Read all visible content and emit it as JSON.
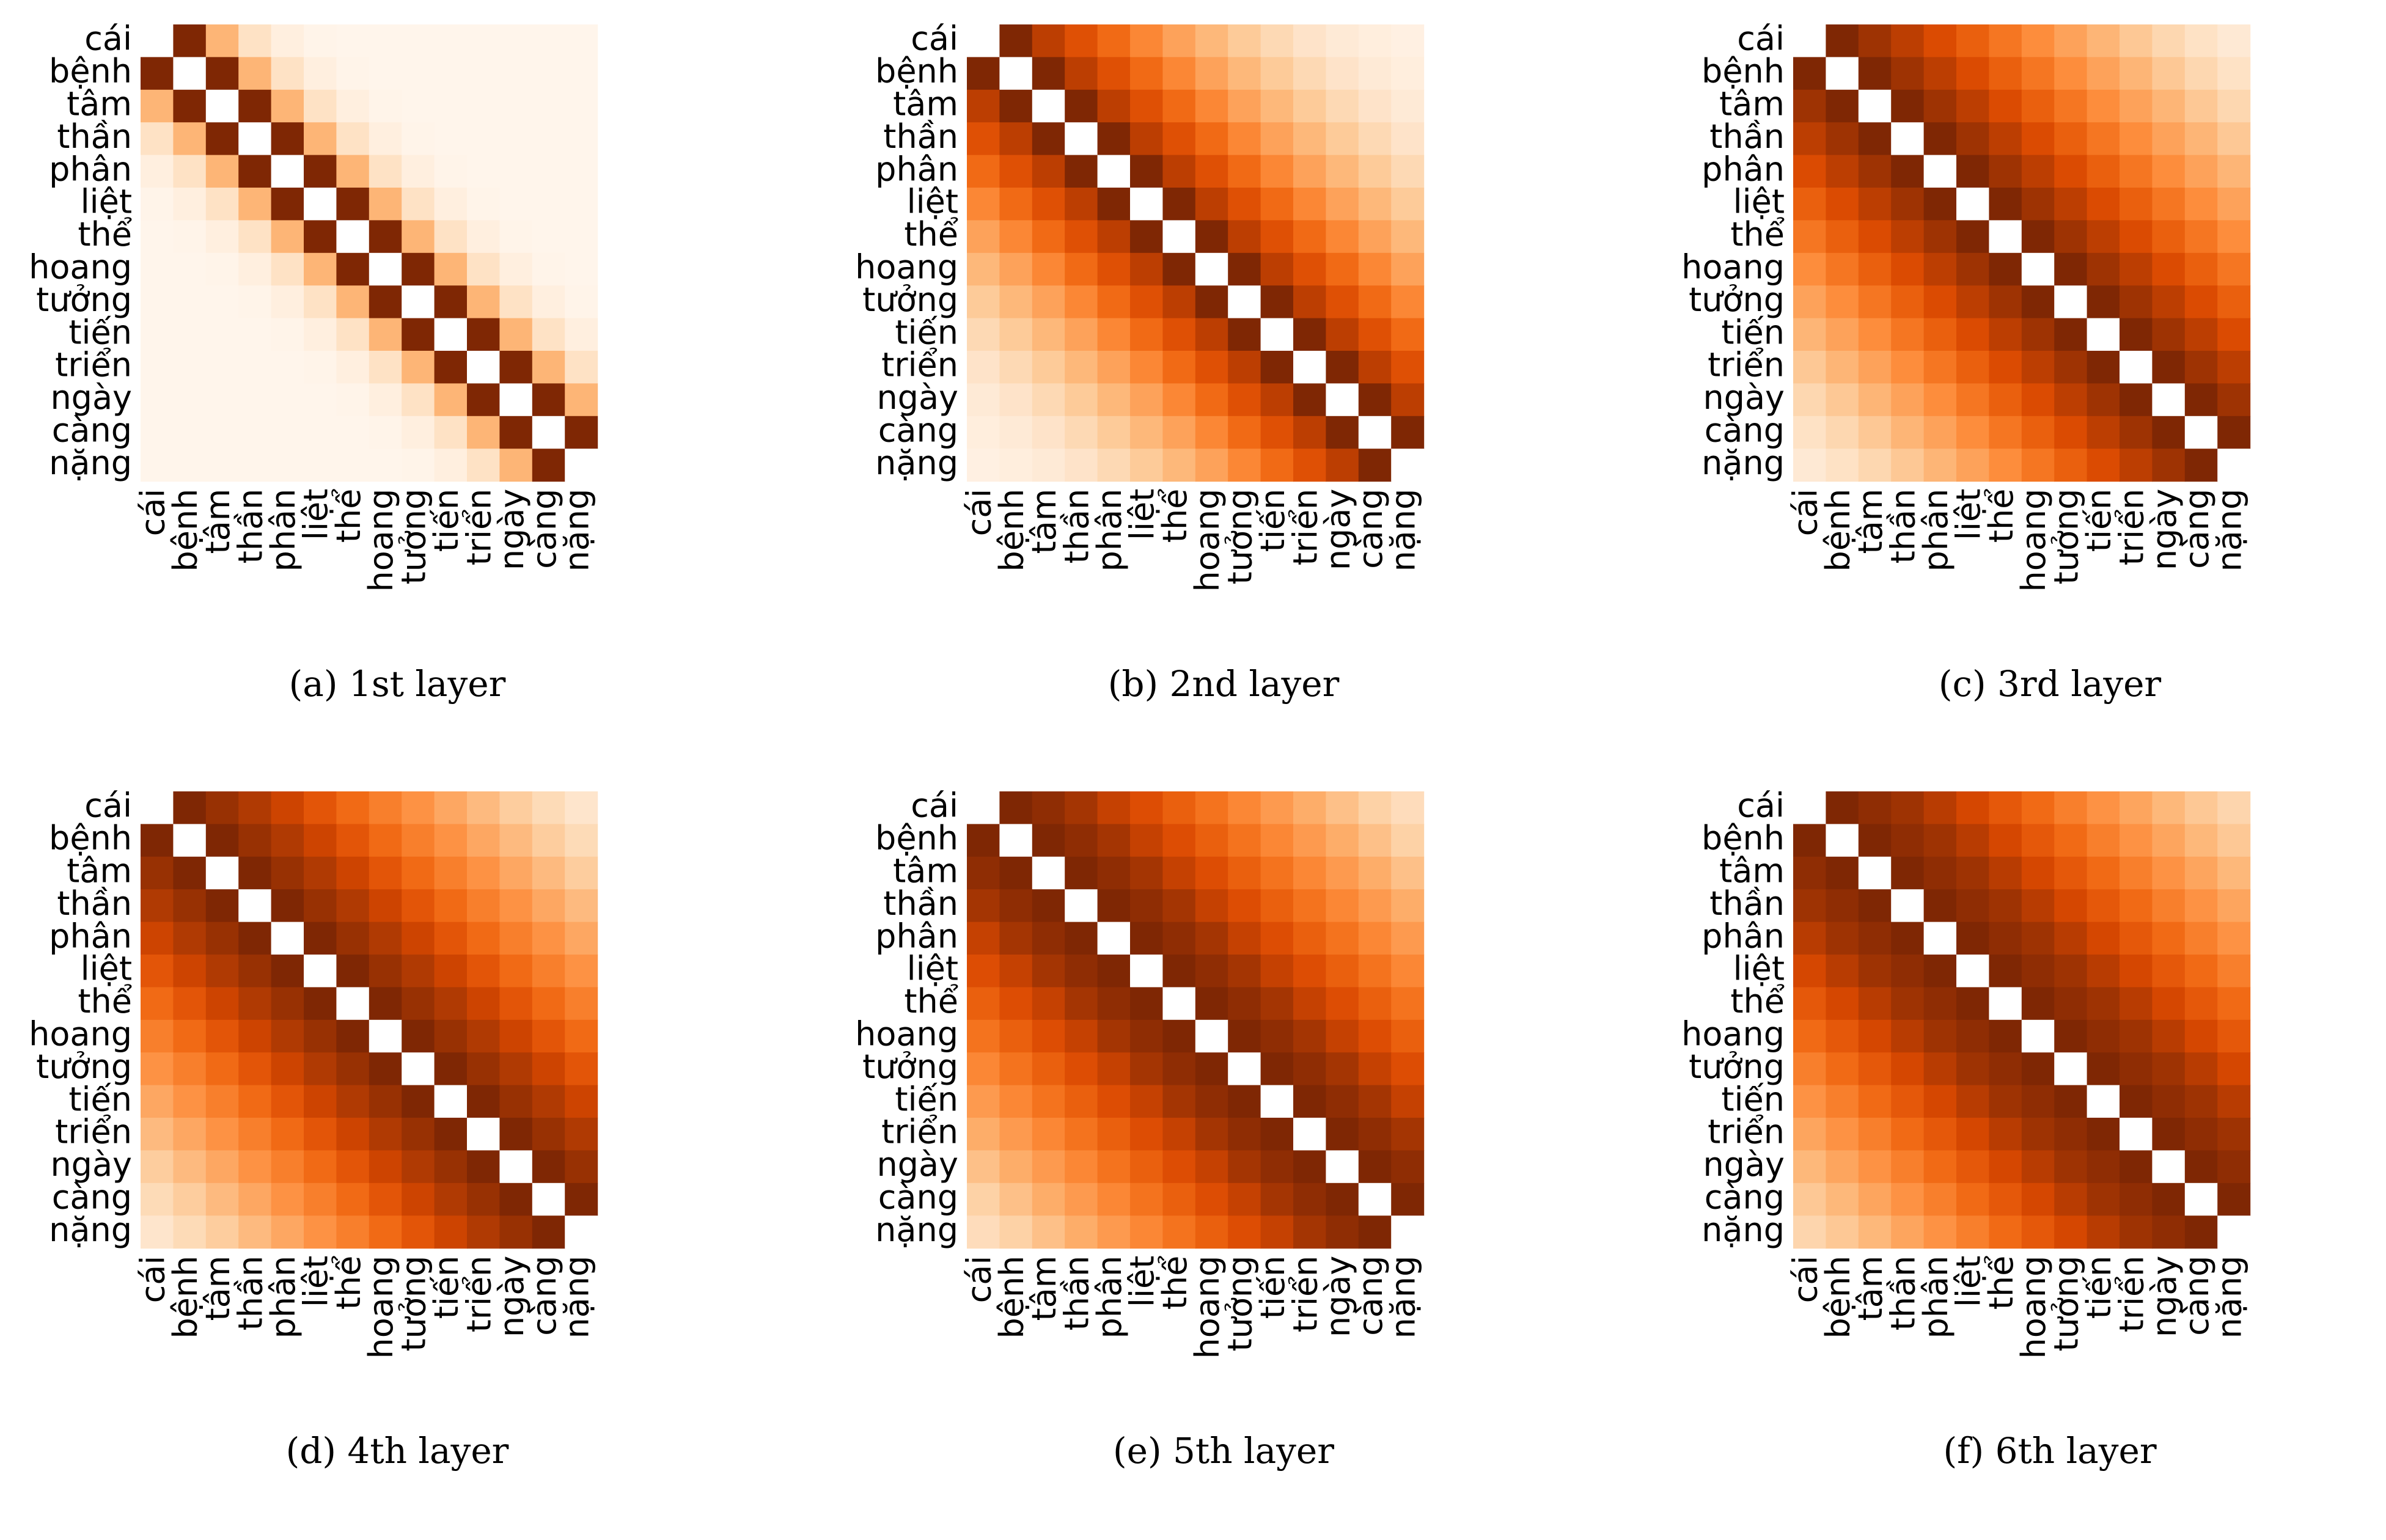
{
  "figure": {
    "tokens": [
      "cái",
      "bệnh",
      "tâm",
      "thần",
      "phân",
      "liệt",
      "thể",
      "hoang",
      "tưởng",
      "tiến",
      "triển",
      "ngày",
      "càng",
      "nặng"
    ],
    "colorscale": [
      "#fff5eb",
      "#fee6ce",
      "#fdd0a2",
      "#fdae6b",
      "#fd8d3c",
      "#f16913",
      "#d94801",
      "#a63603",
      "#7f2704"
    ],
    "diagonal_color": "#ffffff",
    "panels": [
      {
        "caption": "(a) 1st layer",
        "profile": [
          0,
          1.0,
          0.35,
          0.15,
          0.05,
          0.01,
          0,
          0,
          0,
          0,
          0,
          0,
          0,
          0
        ]
      },
      {
        "caption": "(b) 2nd layer",
        "profile": [
          0,
          1.0,
          0.82,
          0.72,
          0.62,
          0.52,
          0.42,
          0.34,
          0.27,
          0.2,
          0.14,
          0.09,
          0.06,
          0.04
        ]
      },
      {
        "caption": "(c) 3rd layer",
        "profile": [
          0,
          1.0,
          0.9,
          0.82,
          0.74,
          0.66,
          0.58,
          0.5,
          0.42,
          0.35,
          0.28,
          0.21,
          0.15,
          0.1
        ]
      },
      {
        "caption": "(d) 4th layer",
        "profile": [
          0,
          1.0,
          0.92,
          0.85,
          0.78,
          0.7,
          0.62,
          0.55,
          0.48,
          0.4,
          0.33,
          0.26,
          0.19,
          0.13
        ]
      },
      {
        "caption": "(e) 5th layer",
        "profile": [
          0,
          1.0,
          0.95,
          0.88,
          0.8,
          0.73,
          0.66,
          0.59,
          0.52,
          0.45,
          0.38,
          0.31,
          0.24,
          0.18
        ]
      },
      {
        "caption": "(f) 6th layer",
        "profile": [
          0,
          1.0,
          0.95,
          0.9,
          0.83,
          0.76,
          0.69,
          0.62,
          0.55,
          0.48,
          0.41,
          0.34,
          0.28,
          0.22
        ]
      }
    ]
  },
  "chart_data": [
    {
      "type": "heatmap",
      "title": "(a) 1st layer",
      "x": [
        "cái",
        "bệnh",
        "tâm",
        "thần",
        "phân",
        "liệt",
        "thể",
        "hoang",
        "tưởng",
        "tiến",
        "triển",
        "ngày",
        "càng",
        "nặng"
      ],
      "y": [
        "cái",
        "bệnh",
        "tâm",
        "thần",
        "phân",
        "liệt",
        "thể",
        "hoang",
        "tưởng",
        "tiến",
        "triển",
        "ngày",
        "càng",
        "nặng"
      ]
    },
    {
      "type": "heatmap",
      "title": "(b) 2nd layer",
      "x": [
        "cái",
        "bệnh",
        "tâm",
        "thần",
        "phân",
        "liệt",
        "thể",
        "hoang",
        "tưởng",
        "tiến",
        "triển",
        "ngày",
        "càng",
        "nặng"
      ],
      "y": [
        "cái",
        "bệnh",
        "tâm",
        "thần",
        "phân",
        "liệt",
        "thể",
        "hoang",
        "tưởng",
        "tiến",
        "triển",
        "ngày",
        "càng",
        "nặng"
      ]
    },
    {
      "type": "heatmap",
      "title": "(c) 3rd layer",
      "x": [
        "cái",
        "bệnh",
        "tâm",
        "thần",
        "phân",
        "liệt",
        "thể",
        "hoang",
        "tưởng",
        "tiến",
        "triển",
        "ngày",
        "càng",
        "nặng"
      ],
      "y": [
        "cái",
        "bệnh",
        "tâm",
        "thần",
        "phân",
        "liệt",
        "thể",
        "hoang",
        "tưởng",
        "tiến",
        "triển",
        "ngày",
        "càng",
        "nặng"
      ]
    },
    {
      "type": "heatmap",
      "title": "(d) 4th layer",
      "x": [
        "cái",
        "bệnh",
        "tâm",
        "thần",
        "phân",
        "liệt",
        "thể",
        "hoang",
        "tưởng",
        "tiến",
        "triển",
        "ngày",
        "càng",
        "nặng"
      ],
      "y": [
        "cái",
        "bệnh",
        "tâm",
        "thần",
        "phân",
        "liệt",
        "thể",
        "hoang",
        "tưởng",
        "tiến",
        "triển",
        "ngày",
        "càng",
        "nặng"
      ]
    },
    {
      "type": "heatmap",
      "title": "(e) 5th layer",
      "x": [
        "cái",
        "bệnh",
        "tâm",
        "thần",
        "phân",
        "liệt",
        "thể",
        "hoang",
        "tưởng",
        "tiến",
        "triển",
        "ngày",
        "càng",
        "nặng"
      ],
      "y": [
        "cái",
        "bệnh",
        "tâm",
        "thần",
        "phân",
        "liệt",
        "thể",
        "hoang",
        "tưởng",
        "tiến",
        "triển",
        "ngày",
        "càng",
        "nặng"
      ]
    },
    {
      "type": "heatmap",
      "title": "(f) 6th layer",
      "x": [
        "cái",
        "bệnh",
        "tâm",
        "thần",
        "phân",
        "liệt",
        "thể",
        "hoang",
        "tưởng",
        "tiến",
        "triển",
        "ngày",
        "càng",
        "nặng"
      ],
      "y": [
        "cái",
        "bệnh",
        "tâm",
        "thần",
        "phân",
        "liệt",
        "thể",
        "hoang",
        "tưởng",
        "tiến",
        "triển",
        "ngày",
        "càng",
        "nặng"
      ]
    }
  ]
}
